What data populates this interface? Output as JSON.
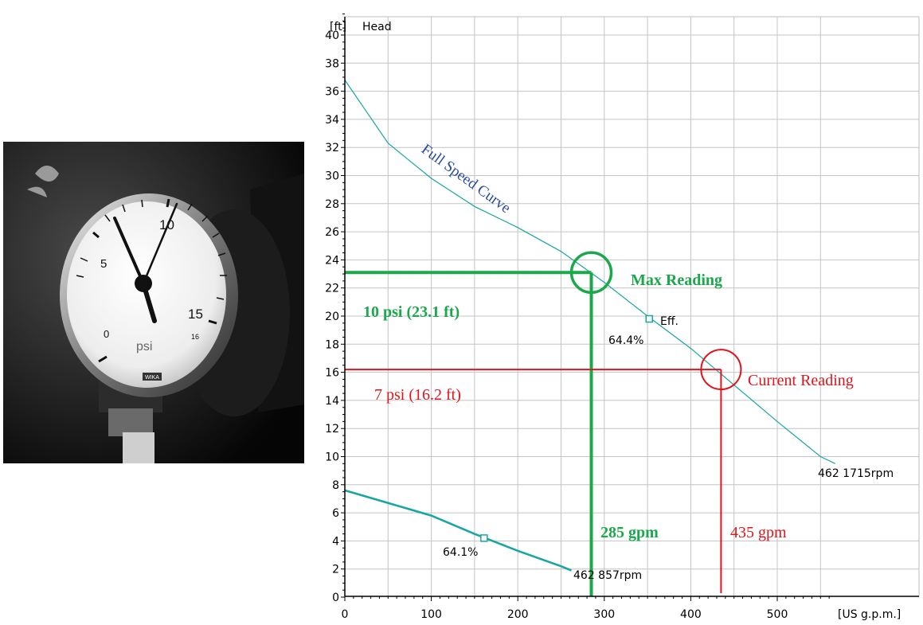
{
  "photo": {
    "gauge_labels": [
      "0",
      "5",
      "10",
      "15",
      "16"
    ],
    "unit": "psi",
    "brand": "WIKA"
  },
  "chart_data": {
    "type": "line",
    "y_unit": "[ft]",
    "y_label": "Head",
    "x_unit": "[US g.p.m.]",
    "xlim": [
      0,
      560
    ],
    "ylim": [
      0,
      42
    ],
    "x_ticks": [
      0,
      100,
      200,
      300,
      400,
      500
    ],
    "y_ticks": [
      0,
      2,
      4,
      6,
      8,
      10,
      12,
      14,
      16,
      18,
      20,
      22,
      24,
      26,
      28,
      30,
      32,
      34,
      36,
      38,
      40
    ],
    "grid": true,
    "colors": {
      "curve": "#1aa5a5",
      "max": "#1aa84a",
      "current": "#e0141c",
      "annotation": "#2b4aa0"
    },
    "series": [
      {
        "label": "Full Speed Curve",
        "end_label": "462 1715rpm",
        "points": [
          [
            0,
            36.8
          ],
          [
            50,
            32.3
          ],
          [
            100,
            29.8
          ],
          [
            150,
            27.8
          ],
          [
            200,
            26.3
          ],
          [
            250,
            24.6
          ],
          [
            300,
            22.4
          ],
          [
            350,
            20.0
          ],
          [
            400,
            17.7
          ],
          [
            450,
            15.1
          ],
          [
            500,
            12.5
          ],
          [
            550,
            10.0
          ],
          [
            567,
            9.5
          ]
        ],
        "eff_point": [
          352,
          19.8
        ],
        "eff_label": "Eff.",
        "eff_value": "64.4%"
      },
      {
        "end_label": "462 857rpm",
        "points": [
          [
            0,
            7.6
          ],
          [
            50,
            6.7
          ],
          [
            100,
            5.8
          ],
          [
            150,
            4.5
          ],
          [
            200,
            3.3
          ],
          [
            250,
            2.2
          ],
          [
            262,
            1.9
          ]
        ],
        "eff_point": [
          161,
          4.2
        ],
        "eff_value": "64.1%"
      }
    ],
    "max_reading": {
      "label": "Max Reading",
      "psi_label": "10 psi (23.1 ft)",
      "gpm_label": "285 gpm",
      "x": 285,
      "y": 23.1
    },
    "current_reading": {
      "label": "Current Reading",
      "psi_label": "7 psi (16.2 ft)",
      "gpm_label": "435 gpm",
      "x": 435,
      "y": 16.2
    }
  }
}
